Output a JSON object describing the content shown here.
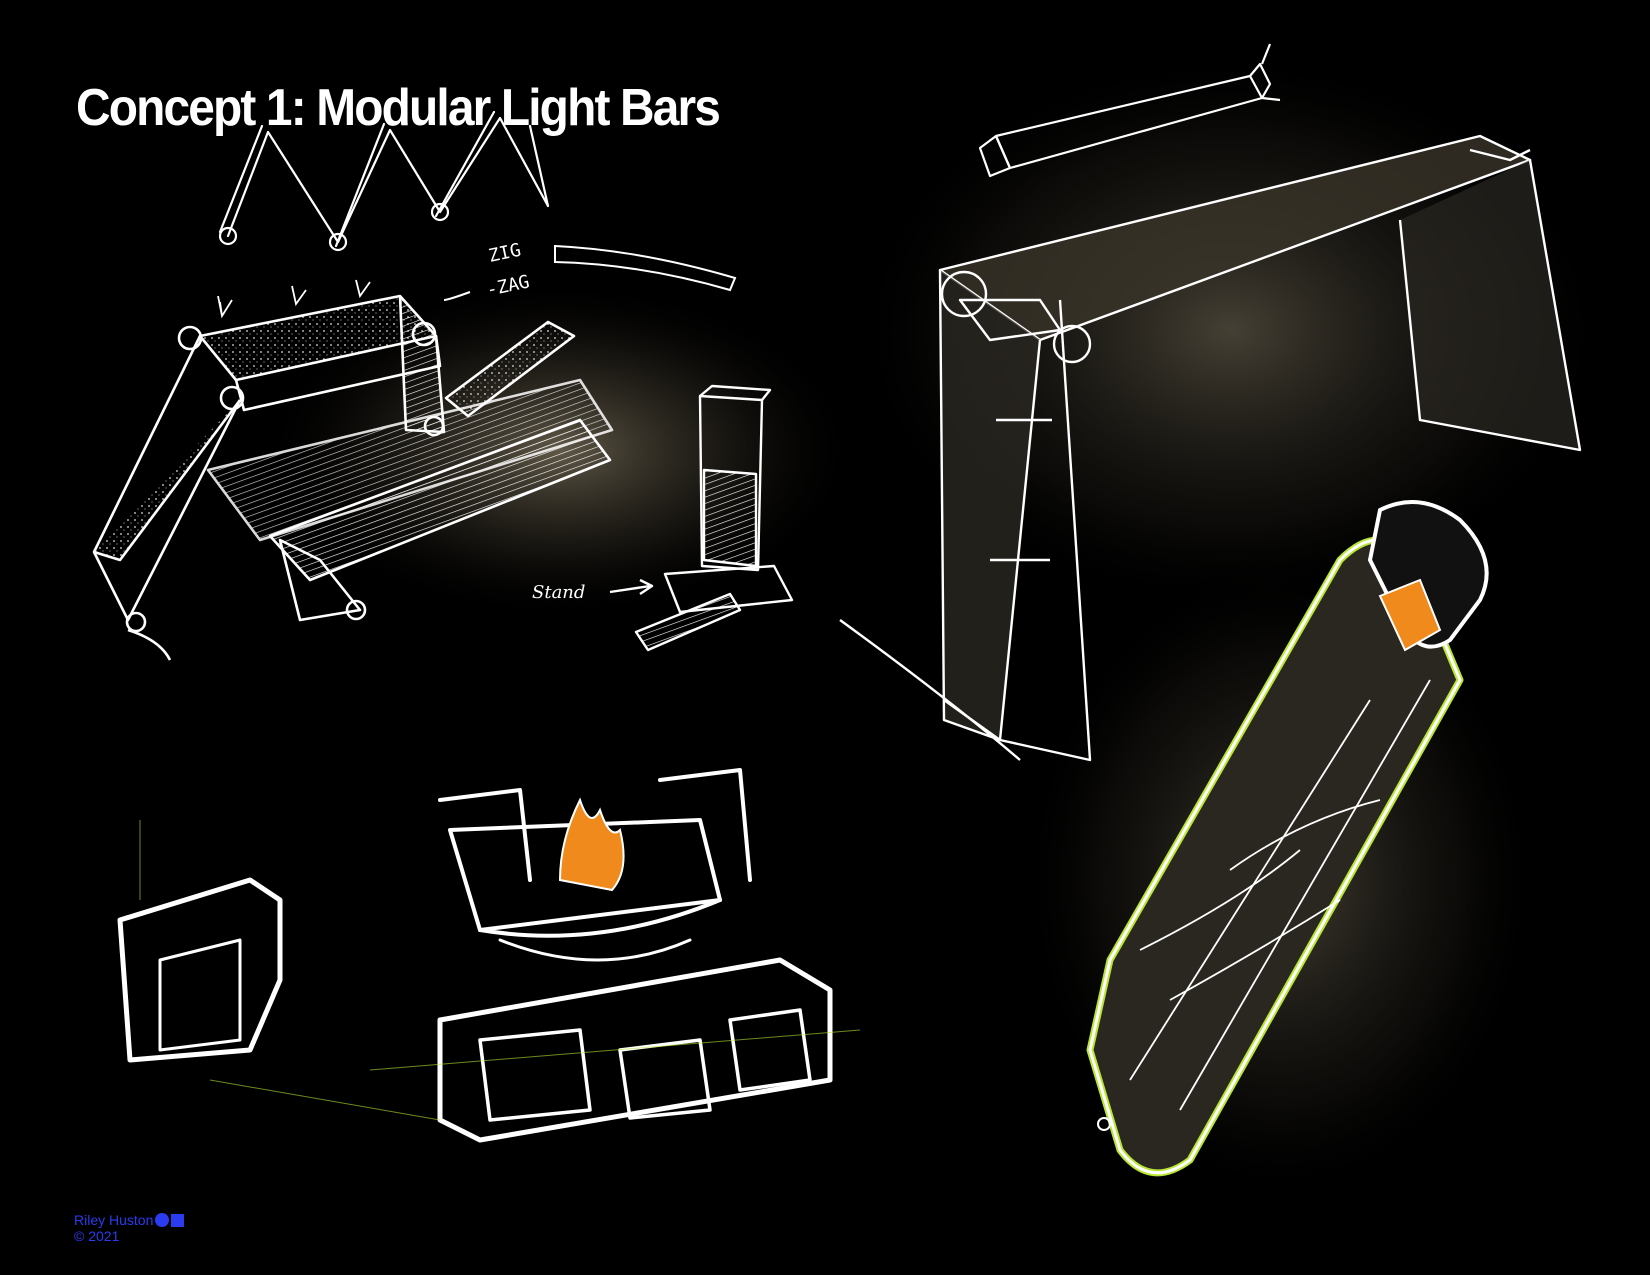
{
  "header": {
    "title": "Concept 1: Modular Light Bars"
  },
  "sketches": {
    "annotations": {
      "zig": "ZIG",
      "zag": "-ZAG",
      "stand": "Stand"
    }
  },
  "footer": {
    "author": "Riley Huston",
    "copyright": "© 2021"
  },
  "colors": {
    "background": "#000000",
    "line": "#ffffff",
    "accent_green": "#b7e633",
    "accent_orange": "#f08a1c",
    "credit": "#2b3bf0",
    "glow": "#5b5444"
  }
}
